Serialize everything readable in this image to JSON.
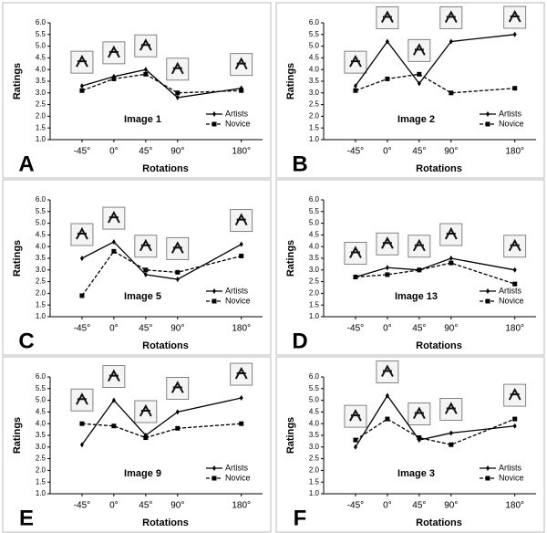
{
  "chart_data": [
    {
      "type": "line",
      "panel": "A",
      "title": "Image 1",
      "xlabel": "Rotations",
      "ylabel": "Ratings",
      "x": [
        -45,
        0,
        45,
        90,
        180
      ],
      "xlim": [
        -90,
        210
      ],
      "xticks": [
        {
          "value": -45,
          "label": "-45°"
        },
        {
          "value": 0,
          "label": "0°"
        },
        {
          "value": 45,
          "label": "45°"
        },
        {
          "value": 90,
          "label": "90°"
        },
        {
          "value": 180,
          "label": "180°"
        }
      ],
      "ylim": [
        1,
        6
      ],
      "yticks": [
        {
          "value": 1,
          "label": "1.0"
        },
        {
          "value": 1.5,
          "label": "1.5"
        },
        {
          "value": 2,
          "label": "2.0"
        },
        {
          "value": 2.5,
          "label": "2.5"
        },
        {
          "value": 3,
          "label": "3.0"
        },
        {
          "value": 3.5,
          "label": "3.5"
        },
        {
          "value": 4,
          "label": "4.0"
        },
        {
          "value": 4.5,
          "label": "4.5"
        },
        {
          "value": 5,
          "label": "5.0"
        },
        {
          "value": 5.5,
          "label": "5.5"
        },
        {
          "value": 6,
          "label": "6.0"
        }
      ],
      "series": [
        {
          "name": "Artists",
          "color": "#000000",
          "values": [
            3.3,
            3.7,
            4.0,
            2.8,
            3.2
          ]
        },
        {
          "name": "Novice",
          "color": "#000000",
          "values": [
            3.1,
            3.6,
            3.8,
            3.0,
            3.1
          ]
        }
      ]
    },
    {
      "type": "line",
      "panel": "B",
      "title": "Image 2",
      "xlabel": "Rotations",
      "ylabel": "Ratings",
      "x": [
        -45,
        0,
        45,
        90,
        180
      ],
      "xlim": [
        -90,
        210
      ],
      "xticks": [
        {
          "value": -45,
          "label": "-45°"
        },
        {
          "value": 0,
          "label": "0°"
        },
        {
          "value": 45,
          "label": "45°"
        },
        {
          "value": 90,
          "label": "90°"
        },
        {
          "value": 180,
          "label": "180°"
        }
      ],
      "ylim": [
        1,
        6
      ],
      "yticks": [
        {
          "value": 1,
          "label": "1.0"
        },
        {
          "value": 1.5,
          "label": "1.5"
        },
        {
          "value": 2,
          "label": "2.0"
        },
        {
          "value": 2.5,
          "label": "2.5"
        },
        {
          "value": 3,
          "label": "3.0"
        },
        {
          "value": 3.5,
          "label": "3.5"
        },
        {
          "value": 4,
          "label": "4.0"
        },
        {
          "value": 4.5,
          "label": "4.5"
        },
        {
          "value": 5,
          "label": "5.0"
        },
        {
          "value": 5.5,
          "label": "5.5"
        },
        {
          "value": 6,
          "label": "6.0"
        }
      ],
      "series": [
        {
          "name": "Artists",
          "color": "#000000",
          "values": [
            3.3,
            5.2,
            3.4,
            5.2,
            5.5
          ]
        },
        {
          "name": "Novice",
          "color": "#000000",
          "values": [
            3.1,
            3.6,
            3.8,
            3.0,
            3.2
          ]
        }
      ]
    },
    {
      "type": "line",
      "panel": "C",
      "title": "Image 5",
      "xlabel": "Rotations",
      "ylabel": "Ratings",
      "x": [
        -45,
        0,
        45,
        90,
        180
      ],
      "xlim": [
        -90,
        210
      ],
      "xticks": [
        {
          "value": -45,
          "label": "-45°"
        },
        {
          "value": 0,
          "label": "0°"
        },
        {
          "value": 45,
          "label": "45°"
        },
        {
          "value": 90,
          "label": "90°"
        },
        {
          "value": 180,
          "label": "180°"
        }
      ],
      "ylim": [
        1,
        6
      ],
      "yticks": [
        {
          "value": 1,
          "label": "1.0"
        },
        {
          "value": 1.5,
          "label": "1.5"
        },
        {
          "value": 2,
          "label": "2.0"
        },
        {
          "value": 2.5,
          "label": "2.5"
        },
        {
          "value": 3,
          "label": "3.0"
        },
        {
          "value": 3.5,
          "label": "3.5"
        },
        {
          "value": 4,
          "label": "4.0"
        },
        {
          "value": 4.5,
          "label": "4.5"
        },
        {
          "value": 5,
          "label": "5.0"
        },
        {
          "value": 5.5,
          "label": "5.5"
        },
        {
          "value": 6,
          "label": "6.0"
        }
      ],
      "series": [
        {
          "name": "Artists",
          "color": "#000000",
          "values": [
            3.5,
            4.2,
            2.8,
            2.6,
            4.1
          ]
        },
        {
          "name": "Novice",
          "color": "#000000",
          "values": [
            1.9,
            3.8,
            3.0,
            2.9,
            3.6
          ]
        }
      ]
    },
    {
      "type": "line",
      "panel": "D",
      "title": "Image 13",
      "xlabel": "Rotations",
      "ylabel": "Ratings",
      "x": [
        -45,
        0,
        45,
        90,
        180
      ],
      "xlim": [
        -90,
        210
      ],
      "xticks": [
        {
          "value": -45,
          "label": "-45°"
        },
        {
          "value": 0,
          "label": "0°"
        },
        {
          "value": 45,
          "label": "45°"
        },
        {
          "value": 90,
          "label": "90°"
        },
        {
          "value": 180,
          "label": "180°"
        }
      ],
      "ylim": [
        1,
        6
      ],
      "yticks": [
        {
          "value": 1,
          "label": "1.0"
        },
        {
          "value": 1.5,
          "label": "1.5"
        },
        {
          "value": 2,
          "label": "2.0"
        },
        {
          "value": 2.5,
          "label": "2.5"
        },
        {
          "value": 3,
          "label": "3.0"
        },
        {
          "value": 3.5,
          "label": "3.5"
        },
        {
          "value": 4,
          "label": "4.0"
        },
        {
          "value": 4.5,
          "label": "4.5"
        },
        {
          "value": 5,
          "label": "5.0"
        },
        {
          "value": 5.5,
          "label": "5.5"
        },
        {
          "value": 6,
          "label": "6.0"
        }
      ],
      "series": [
        {
          "name": "Artists",
          "color": "#000000",
          "values": [
            2.7,
            3.1,
            3.0,
            3.5,
            3.0
          ]
        },
        {
          "name": "Novice",
          "color": "#000000",
          "values": [
            2.7,
            2.8,
            3.0,
            3.3,
            2.4
          ]
        }
      ]
    },
    {
      "type": "line",
      "panel": "E",
      "title": "Image 9",
      "xlabel": "Rotations",
      "ylabel": "Ratings",
      "x": [
        -45,
        0,
        45,
        90,
        180
      ],
      "xlim": [
        -90,
        210
      ],
      "xticks": [
        {
          "value": -45,
          "label": "-45°"
        },
        {
          "value": 0,
          "label": "0°"
        },
        {
          "value": 45,
          "label": "45°"
        },
        {
          "value": 90,
          "label": "90°"
        },
        {
          "value": 180,
          "label": "180°"
        }
      ],
      "ylim": [
        1,
        6
      ],
      "yticks": [
        {
          "value": 1,
          "label": "1.0"
        },
        {
          "value": 1.5,
          "label": "1.5"
        },
        {
          "value": 2,
          "label": "2.0"
        },
        {
          "value": 2.5,
          "label": "2.5"
        },
        {
          "value": 3,
          "label": "3.0"
        },
        {
          "value": 3.5,
          "label": "3.5"
        },
        {
          "value": 4,
          "label": "4.0"
        },
        {
          "value": 4.5,
          "label": "4.5"
        },
        {
          "value": 5,
          "label": "5.0"
        },
        {
          "value": 5.5,
          "label": "5.5"
        },
        {
          "value": 6,
          "label": "6.0"
        }
      ],
      "series": [
        {
          "name": "Artists",
          "color": "#000000",
          "values": [
            3.1,
            5.0,
            3.5,
            4.5,
            5.1
          ]
        },
        {
          "name": "Novice",
          "color": "#000000",
          "values": [
            4.0,
            3.9,
            3.4,
            3.8,
            4.0
          ]
        }
      ]
    },
    {
      "type": "line",
      "panel": "F",
      "title": "Image 3",
      "xlabel": "Rotations",
      "ylabel": "Ratings",
      "x": [
        -45,
        0,
        45,
        90,
        180
      ],
      "xlim": [
        -90,
        210
      ],
      "xticks": [
        {
          "value": -45,
          "label": "-45°"
        },
        {
          "value": 0,
          "label": "0°"
        },
        {
          "value": 45,
          "label": "45°"
        },
        {
          "value": 90,
          "label": "90°"
        },
        {
          "value": 180,
          "label": "180°"
        }
      ],
      "ylim": [
        1,
        6
      ],
      "yticks": [
        {
          "value": 1,
          "label": "1.0"
        },
        {
          "value": 1.5,
          "label": "1.5"
        },
        {
          "value": 2,
          "label": "2.0"
        },
        {
          "value": 2.5,
          "label": "2.5"
        },
        {
          "value": 3,
          "label": "3.0"
        },
        {
          "value": 3.5,
          "label": "3.5"
        },
        {
          "value": 4,
          "label": "4.0"
        },
        {
          "value": 4.5,
          "label": "4.5"
        },
        {
          "value": 5,
          "label": "5.0"
        },
        {
          "value": 5.5,
          "label": "5.5"
        },
        {
          "value": 6,
          "label": "6.0"
        }
      ],
      "series": [
        {
          "name": "Artists",
          "color": "#000000",
          "values": [
            3.0,
            5.2,
            3.3,
            3.6,
            3.9
          ]
        },
        {
          "name": "Novice",
          "color": "#000000",
          "values": [
            3.3,
            4.2,
            3.4,
            3.1,
            4.2
          ]
        }
      ]
    }
  ]
}
